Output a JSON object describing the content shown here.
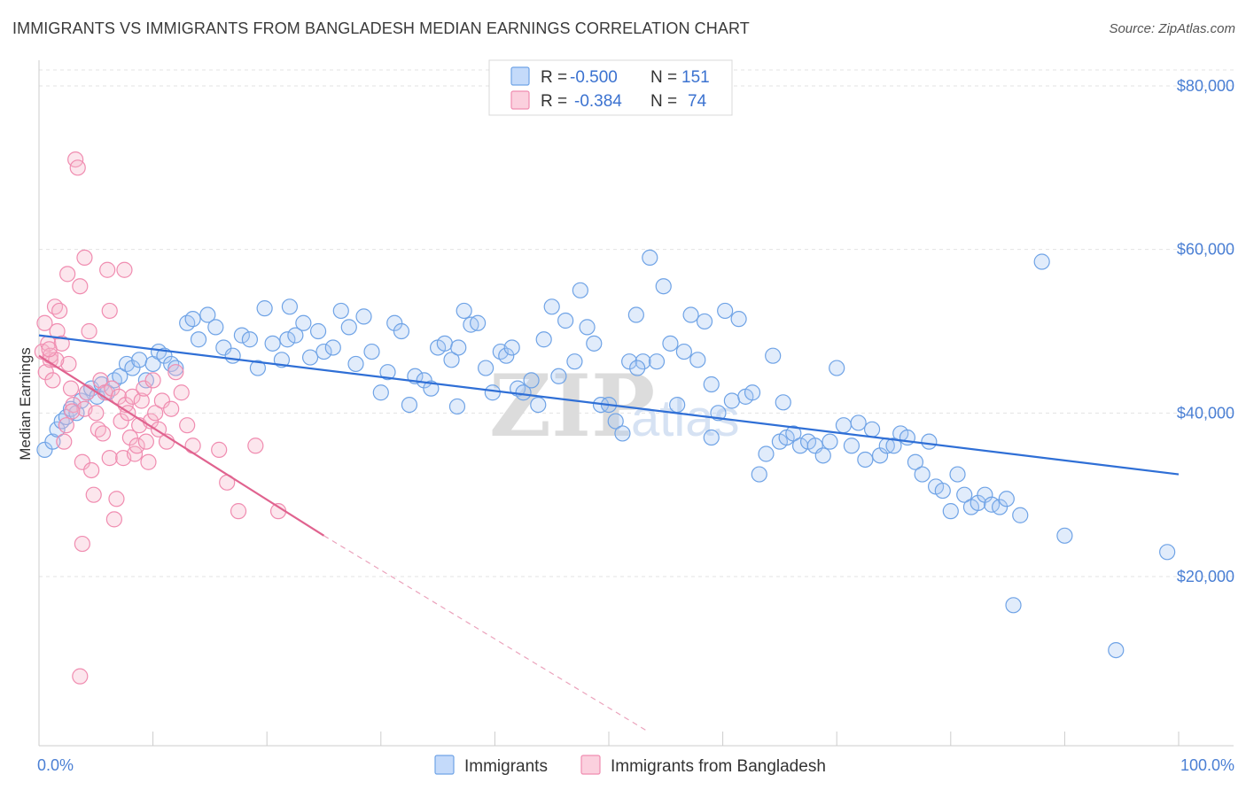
{
  "title": "IMMIGRANTS VS IMMIGRANTS FROM BANGLADESH MEDIAN EARNINGS CORRELATION CHART",
  "source": "Source: ZipAtlas.com",
  "watermark": {
    "zip": "ZIP",
    "atlas": "atlas"
  },
  "colors": {
    "blue": "#6fa3e6",
    "blue_line": "#2f6fd6",
    "pink": "#f08cb0",
    "pink_line": "#e0638f",
    "axis_label": "#4a7fd4"
  },
  "legend": {
    "rows": [
      {
        "r_label": "R = ",
        "r_value": "-0.500",
        "n_label": "N = ",
        "n_value": "151"
      },
      {
        "r_label": "R = ",
        "r_value": "-0.384",
        "n_label": "N = ",
        "n_value": "74"
      }
    ]
  },
  "bottom_legend": {
    "series1": "Immigrants",
    "series2": "Immigrants from Bangladesh"
  },
  "chart_data": {
    "type": "scatter",
    "title": "IMMIGRANTS VS IMMIGRANTS FROM BANGLADESH MEDIAN EARNINGS CORRELATION CHART",
    "xlabel": "",
    "ylabel": "Median Earnings",
    "xlim": [
      0,
      100
    ],
    "ylim": [
      0,
      82000
    ],
    "x_tick_labels": [
      "0.0%",
      "100.0%"
    ],
    "y_ticks": [
      20000,
      40000,
      60000,
      80000
    ],
    "y_tick_labels": [
      "$20,000",
      "$40,000",
      "$60,000",
      "$80,000"
    ],
    "grid": true,
    "series": [
      {
        "name": "Immigrants",
        "R": -0.5,
        "N": 151,
        "trend": {
          "x0": 0,
          "y0": 49500,
          "x1": 100,
          "y1": 32500
        },
        "points": [
          [
            0.5,
            35500
          ],
          [
            1.2,
            36500
          ],
          [
            1.6,
            38000
          ],
          [
            2.0,
            39000
          ],
          [
            2.4,
            39500
          ],
          [
            2.8,
            40500
          ],
          [
            3.3,
            40000
          ],
          [
            3.7,
            41500
          ],
          [
            4.2,
            42500
          ],
          [
            4.6,
            43000
          ],
          [
            5.1,
            42000
          ],
          [
            5.5,
            43500
          ],
          [
            6.0,
            42500
          ],
          [
            6.6,
            44000
          ],
          [
            7.1,
            44500
          ],
          [
            7.7,
            46000
          ],
          [
            8.2,
            45500
          ],
          [
            8.8,
            46500
          ],
          [
            9.4,
            44000
          ],
          [
            10.0,
            46000
          ],
          [
            10.5,
            47500
          ],
          [
            11.0,
            47000
          ],
          [
            11.6,
            46000
          ],
          [
            12.0,
            45500
          ],
          [
            13.0,
            51000
          ],
          [
            14.0,
            49000
          ],
          [
            14.8,
            52000
          ],
          [
            15.5,
            50500
          ],
          [
            16.2,
            48000
          ],
          [
            17.0,
            47000
          ],
          [
            17.8,
            49500
          ],
          [
            18.5,
            49000
          ],
          [
            19.2,
            45500
          ],
          [
            19.8,
            52800
          ],
          [
            20.5,
            48500
          ],
          [
            21.3,
            46500
          ],
          [
            21.8,
            49000
          ],
          [
            22.5,
            49500
          ],
          [
            23.2,
            51000
          ],
          [
            23.8,
            46800
          ],
          [
            24.5,
            50000
          ],
          [
            25.0,
            47500
          ],
          [
            25.8,
            48000
          ],
          [
            26.5,
            52500
          ],
          [
            27.2,
            50500
          ],
          [
            27.8,
            46000
          ],
          [
            28.5,
            51800
          ],
          [
            29.2,
            47500
          ],
          [
            30.0,
            42500
          ],
          [
            30.6,
            45000
          ],
          [
            31.2,
            51000
          ],
          [
            31.8,
            50000
          ],
          [
            32.5,
            41000
          ],
          [
            33.0,
            44500
          ],
          [
            33.8,
            44000
          ],
          [
            34.4,
            43000
          ],
          [
            35.0,
            48000
          ],
          [
            35.6,
            48500
          ],
          [
            36.2,
            46500
          ],
          [
            36.8,
            48000
          ],
          [
            37.3,
            52500
          ],
          [
            37.9,
            50800
          ],
          [
            38.5,
            51000
          ],
          [
            39.2,
            45500
          ],
          [
            39.8,
            42500
          ],
          [
            40.5,
            47500
          ],
          [
            41.0,
            47000
          ],
          [
            41.5,
            48000
          ],
          [
            42.0,
            43000
          ],
          [
            42.5,
            42500
          ],
          [
            43.2,
            44000
          ],
          [
            43.8,
            41000
          ],
          [
            44.3,
            49000
          ],
          [
            45.0,
            53000
          ],
          [
            45.6,
            44500
          ],
          [
            46.2,
            51300
          ],
          [
            47.0,
            46300
          ],
          [
            47.5,
            55000
          ],
          [
            48.1,
            50500
          ],
          [
            48.7,
            48500
          ],
          [
            49.3,
            41000
          ],
          [
            50.0,
            41000
          ],
          [
            50.6,
            39000
          ],
          [
            51.2,
            37500
          ],
          [
            51.8,
            46300
          ],
          [
            52.4,
            52000
          ],
          [
            53.0,
            46300
          ],
          [
            53.6,
            59000
          ],
          [
            54.2,
            46300
          ],
          [
            54.8,
            55500
          ],
          [
            55.4,
            48500
          ],
          [
            56.0,
            41000
          ],
          [
            56.6,
            47500
          ],
          [
            57.2,
            52000
          ],
          [
            57.8,
            46500
          ],
          [
            58.4,
            51200
          ],
          [
            59.0,
            43500
          ],
          [
            59.6,
            40000
          ],
          [
            60.2,
            52500
          ],
          [
            60.8,
            41500
          ],
          [
            61.4,
            51500
          ],
          [
            62.0,
            42000
          ],
          [
            62.6,
            42500
          ],
          [
            63.2,
            32500
          ],
          [
            63.8,
            35000
          ],
          [
            64.4,
            47000
          ],
          [
            65.0,
            36500
          ],
          [
            65.6,
            37000
          ],
          [
            66.2,
            37500
          ],
          [
            66.8,
            36000
          ],
          [
            67.5,
            36500
          ],
          [
            68.1,
            36000
          ],
          [
            68.8,
            34800
          ],
          [
            69.4,
            36500
          ],
          [
            70.0,
            45500
          ],
          [
            70.6,
            38500
          ],
          [
            71.3,
            36000
          ],
          [
            71.9,
            38800
          ],
          [
            72.5,
            34300
          ],
          [
            73.1,
            38000
          ],
          [
            73.8,
            34800
          ],
          [
            74.4,
            36000
          ],
          [
            75.0,
            36000
          ],
          [
            75.6,
            37500
          ],
          [
            76.2,
            37000
          ],
          [
            76.9,
            34000
          ],
          [
            77.5,
            32500
          ],
          [
            78.1,
            36500
          ],
          [
            78.7,
            31000
          ],
          [
            79.3,
            30500
          ],
          [
            80.0,
            28000
          ],
          [
            80.6,
            32500
          ],
          [
            81.2,
            30000
          ],
          [
            81.8,
            28500
          ],
          [
            82.4,
            29000
          ],
          [
            83.0,
            30000
          ],
          [
            83.6,
            28800
          ],
          [
            84.3,
            28500
          ],
          [
            84.9,
            29500
          ],
          [
            85.5,
            16500
          ],
          [
            86.1,
            27500
          ],
          [
            88.0,
            58500
          ],
          [
            90.0,
            25000
          ],
          [
            94.5,
            11000
          ],
          [
            99.0,
            23000
          ],
          [
            59.0,
            37000
          ],
          [
            52.5,
            45500
          ],
          [
            36.7,
            40800
          ],
          [
            65.3,
            41300
          ],
          [
            22.0,
            53000
          ],
          [
            13.5,
            51500
          ]
        ]
      },
      {
        "name": "Immigrants from Bangladesh",
        "R": -0.384,
        "N": 74,
        "trend": {
          "x0": 0,
          "y0": 47000,
          "x1": 25,
          "y1": 25000,
          "dash_x1": 53.5,
          "dash_y1": 1000
        },
        "points": [
          [
            0.3,
            47500
          ],
          [
            0.5,
            51000
          ],
          [
            0.6,
            45000
          ],
          [
            0.8,
            48500
          ],
          [
            1.0,
            46500
          ],
          [
            1.2,
            44000
          ],
          [
            1.4,
            53000
          ],
          [
            1.6,
            50000
          ],
          [
            1.8,
            52500
          ],
          [
            2.0,
            48500
          ],
          [
            2.2,
            36500
          ],
          [
            2.4,
            38500
          ],
          [
            2.6,
            46000
          ],
          [
            2.8,
            43000
          ],
          [
            3.0,
            41000
          ],
          [
            3.2,
            71000
          ],
          [
            3.4,
            70000
          ],
          [
            3.6,
            55500
          ],
          [
            3.8,
            34000
          ],
          [
            4.0,
            40500
          ],
          [
            4.2,
            42500
          ],
          [
            4.4,
            50000
          ],
          [
            4.6,
            33000
          ],
          [
            4.8,
            30000
          ],
          [
            5.0,
            40000
          ],
          [
            5.2,
            38000
          ],
          [
            5.4,
            44000
          ],
          [
            5.6,
            37500
          ],
          [
            5.8,
            42500
          ],
          [
            6.0,
            57500
          ],
          [
            6.2,
            34500
          ],
          [
            6.4,
            43000
          ],
          [
            6.6,
            27000
          ],
          [
            6.8,
            29500
          ],
          [
            7.0,
            42000
          ],
          [
            7.2,
            39000
          ],
          [
            7.4,
            34500
          ],
          [
            7.6,
            41000
          ],
          [
            7.8,
            40000
          ],
          [
            8.0,
            37000
          ],
          [
            8.2,
            42000
          ],
          [
            8.4,
            35000
          ],
          [
            8.6,
            36000
          ],
          [
            8.8,
            38500
          ],
          [
            9.0,
            41500
          ],
          [
            9.2,
            43000
          ],
          [
            9.4,
            36500
          ],
          [
            9.6,
            34000
          ],
          [
            9.8,
            39000
          ],
          [
            10.0,
            44000
          ],
          [
            10.2,
            40000
          ],
          [
            10.5,
            38000
          ],
          [
            10.8,
            41500
          ],
          [
            11.2,
            36500
          ],
          [
            11.6,
            40500
          ],
          [
            12.0,
            45000
          ],
          [
            12.5,
            42500
          ],
          [
            13.0,
            38500
          ],
          [
            13.5,
            36000
          ],
          [
            15.8,
            35500
          ],
          [
            16.5,
            31500
          ],
          [
            17.5,
            28000
          ],
          [
            19.0,
            36000
          ],
          [
            21.0,
            28000
          ],
          [
            2.5,
            57000
          ],
          [
            4.0,
            59000
          ],
          [
            7.5,
            57500
          ],
          [
            1.0,
            47000
          ],
          [
            1.5,
            46500
          ],
          [
            0.9,
            47800
          ],
          [
            2.9,
            40200
          ],
          [
            3.6,
            7800
          ],
          [
            6.2,
            52500
          ],
          [
            3.8,
            24000
          ]
        ]
      }
    ]
  }
}
